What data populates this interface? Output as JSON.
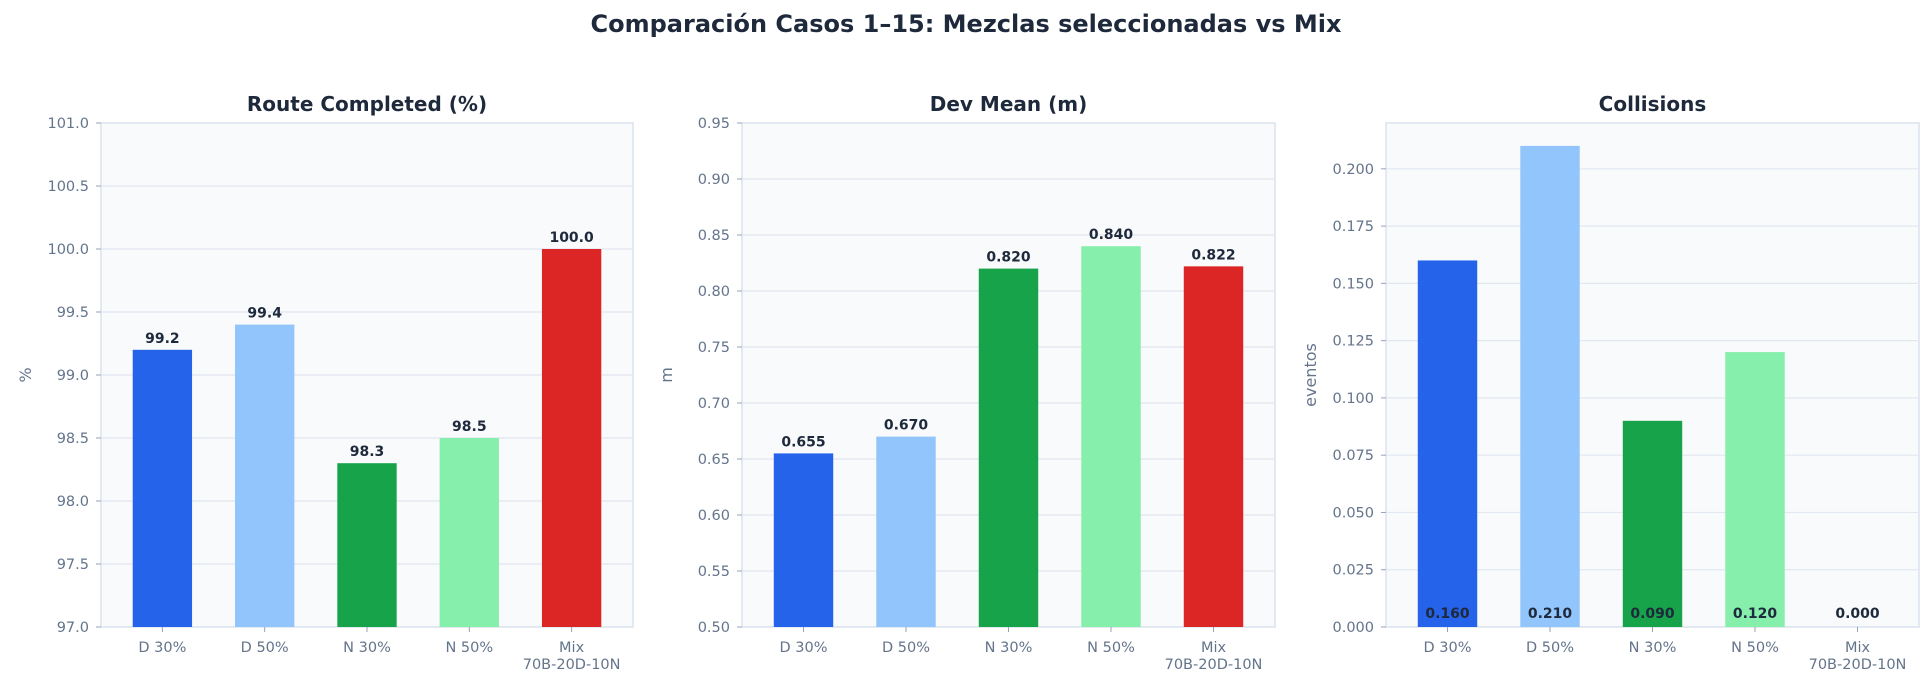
{
  "suptitle": "Comparación Casos 1–15: Mezclas seleccionadas vs Mix",
  "colors": {
    "D 30%": "#2563eb",
    "D 50%": "#93c5fd",
    "N 30%": "#16a34a",
    "N 50%": "#86efac",
    "Mix": "#dc2626",
    "background": "#f8fafc",
    "grid": "#e2e8f0",
    "text": "#1e293b",
    "muted": "#64748b"
  },
  "chart_data": [
    {
      "type": "bar",
      "title": "Route Completed (%)",
      "ylabel": "%",
      "xlabel": "",
      "categories": [
        "D 30%",
        "D 50%",
        "N 30%",
        "N 50%",
        "Mix\n70B-20D-10N"
      ],
      "values": [
        99.2,
        99.4,
        98.3,
        98.5,
        100.0
      ],
      "value_labels": [
        "99.2",
        "99.4",
        "98.3",
        "98.5",
        "100.0"
      ],
      "label_position": "above",
      "ylim": [
        97.0,
        101.0
      ],
      "yticks": [
        "97.0",
        "97.5",
        "98.0",
        "98.5",
        "99.0",
        "99.5",
        "100.0",
        "100.5",
        "101.0"
      ],
      "grid": true
    },
    {
      "type": "bar",
      "title": "Dev Mean (m)",
      "ylabel": "m",
      "xlabel": "",
      "categories": [
        "D 30%",
        "D 50%",
        "N 30%",
        "N 50%",
        "Mix\n70B-20D-10N"
      ],
      "values": [
        0.655,
        0.67,
        0.82,
        0.84,
        0.822
      ],
      "value_labels": [
        "0.655",
        "0.670",
        "0.820",
        "0.840",
        "0.822"
      ],
      "label_position": "above",
      "ylim": [
        0.5,
        0.95
      ],
      "yticks": [
        "0.50",
        "0.55",
        "0.60",
        "0.65",
        "0.70",
        "0.75",
        "0.80",
        "0.85",
        "0.90",
        "0.95"
      ],
      "grid": true
    },
    {
      "type": "bar",
      "title": "Collisions",
      "ylabel": "eventos",
      "xlabel": "",
      "categories": [
        "D 30%",
        "D 50%",
        "N 30%",
        "N 50%",
        "Mix\n70B-20D-10N"
      ],
      "values": [
        0.16,
        0.21,
        0.09,
        0.12,
        0.0
      ],
      "value_labels": [
        "0.160",
        "0.210",
        "0.090",
        "0.120",
        "0.000"
      ],
      "label_position": "base",
      "ylim": [
        0.0,
        0.22
      ],
      "yticks": [
        "0.000",
        "0.025",
        "0.050",
        "0.075",
        "0.100",
        "0.125",
        "0.150",
        "0.175",
        "0.200"
      ],
      "grid": true
    }
  ]
}
